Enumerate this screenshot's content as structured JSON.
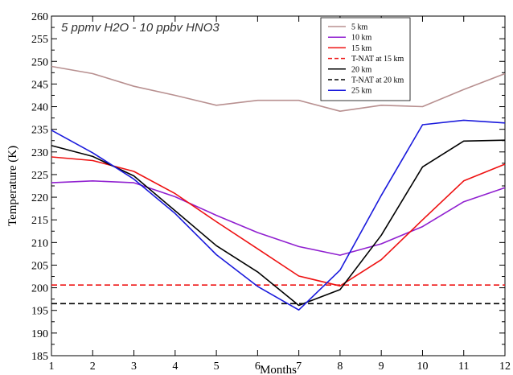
{
  "chart_data": {
    "type": "line",
    "annotation": "5 ppmv H2O - 10 ppbv HNO3",
    "xlabel": "Months",
    "ylabel": "Temperature (K)",
    "xlim": [
      1,
      12
    ],
    "ylim": [
      185,
      260
    ],
    "x": [
      1,
      2,
      3,
      4,
      5,
      6,
      7,
      8,
      9,
      10,
      11,
      12
    ],
    "x_ticks": [
      "1",
      "2",
      "3",
      "4",
      "5",
      "6",
      "7",
      "8",
      "9",
      "10",
      "11",
      "12"
    ],
    "y_ticks": [
      "185",
      "190",
      "195",
      "200",
      "205",
      "210",
      "215",
      "220",
      "225",
      "230",
      "235",
      "240",
      "245",
      "250",
      "255",
      "260"
    ],
    "legend_position": "top-right",
    "grid": false,
    "series": [
      {
        "name": "5 km",
        "color": "#b89090",
        "dash": "solid",
        "values": [
          248.9,
          247.3,
          244.5,
          242.5,
          240.3,
          241.4,
          241.4,
          239.0,
          240.3,
          240.0,
          243.8,
          247.3
        ]
      },
      {
        "name": "10 km",
        "color": "#9020d0",
        "dash": "solid",
        "values": [
          223.2,
          223.6,
          223.2,
          220.1,
          216.0,
          212.2,
          209.1,
          207.2,
          209.7,
          213.5,
          219.0,
          222.1
        ]
      },
      {
        "name": "15 km",
        "color": "#ee1111",
        "dash": "solid",
        "values": [
          228.9,
          228.1,
          225.7,
          220.8,
          214.6,
          208.6,
          202.6,
          200.4,
          206.2,
          215.0,
          223.6,
          227.3
        ]
      },
      {
        "name": "T-NAT at 15 km",
        "color": "#ee1111",
        "dash": "dashed",
        "values": [
          200.6,
          200.6,
          200.6,
          200.6,
          200.6,
          200.6,
          200.6,
          200.6,
          200.6,
          200.6,
          200.6,
          200.6
        ]
      },
      {
        "name": "20 km",
        "color": "#000000",
        "dash": "solid",
        "values": [
          231.4,
          229.0,
          224.7,
          217.0,
          209.3,
          203.5,
          196.1,
          199.6,
          211.6,
          226.7,
          232.4,
          232.6
        ]
      },
      {
        "name": "T-NAT at 20 km",
        "color": "#000000",
        "dash": "dashed",
        "values": [
          196.5,
          196.5,
          196.5,
          196.5,
          196.5,
          196.5,
          196.5,
          196.5,
          196.5,
          196.5,
          196.5,
          196.5
        ]
      },
      {
        "name": "25 km",
        "color": "#1a1adc",
        "dash": "solid",
        "values": [
          234.8,
          229.8,
          224.0,
          216.4,
          207.3,
          200.3,
          195.1,
          203.9,
          220.4,
          236.0,
          237.0,
          236.4
        ]
      }
    ]
  }
}
